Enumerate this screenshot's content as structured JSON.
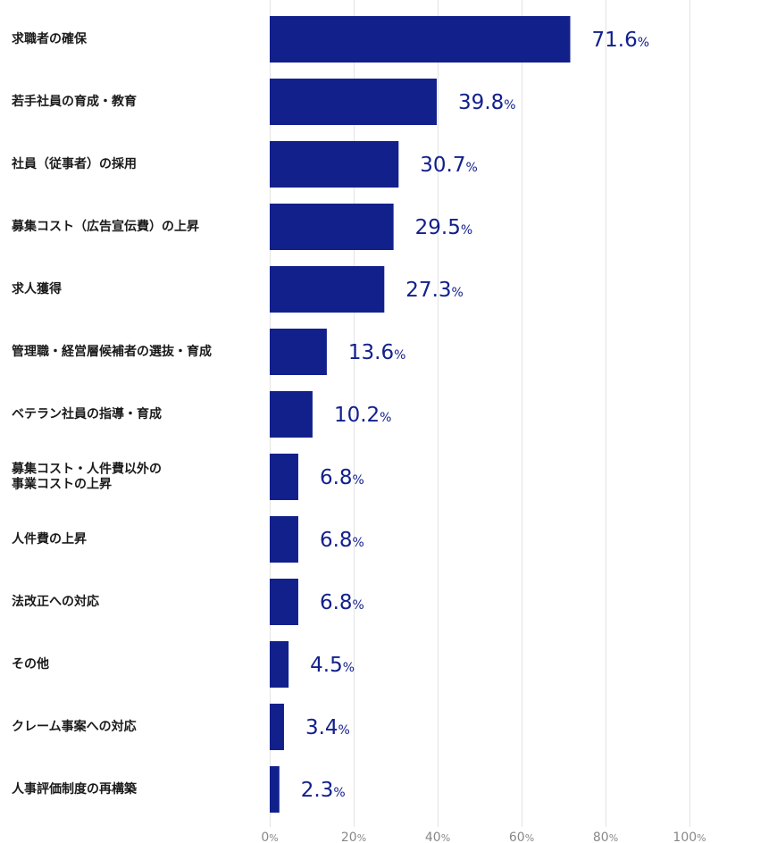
{
  "chart_data": {
    "type": "bar",
    "orientation": "horizontal",
    "title": "",
    "xlabel": "",
    "ylabel": "",
    "unit": "%",
    "xlim": [
      0,
      100
    ],
    "ticks": [
      0,
      20,
      40,
      60,
      80,
      100
    ],
    "grid": true,
    "bar_color": "#12208c",
    "categories": [
      [
        "求職者の確保"
      ],
      [
        "若手社員の育成・教育"
      ],
      [
        "社員（従事者）の採用"
      ],
      [
        "募集コスト（広告宣伝費）の上昇"
      ],
      [
        "求人獲得"
      ],
      [
        "管理職・経営層候補者の選抜・育成"
      ],
      [
        "ベテラン社員の指導・育成"
      ],
      [
        "募集コスト・人件費以外の",
        "事業コストの上昇"
      ],
      [
        "人件費の上昇"
      ],
      [
        "法改正への対応"
      ],
      [
        "その他"
      ],
      [
        "クレーム事案への対応"
      ],
      [
        "人事評価制度の再構築"
      ]
    ],
    "values": [
      71.6,
      39.8,
      30.7,
      29.5,
      27.3,
      13.6,
      10.2,
      6.8,
      6.8,
      6.8,
      4.5,
      3.4,
      2.3
    ]
  }
}
